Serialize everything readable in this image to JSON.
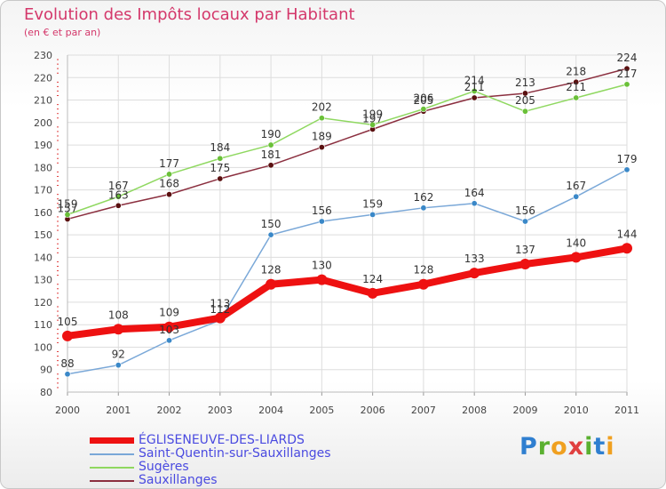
{
  "title": "Evolution des Impôts locaux par Habitant",
  "subtitle": "(en € et par an)",
  "brand": {
    "text": "Proxiti",
    "letters": [
      {
        "ch": "P",
        "color": "#2f7fd0"
      },
      {
        "ch": "r",
        "color": "#5ab030"
      },
      {
        "ch": "o",
        "color": "#f0a020"
      },
      {
        "ch": "x",
        "color": "#e04040"
      },
      {
        "ch": "i",
        "color": "#5ab030"
      },
      {
        "ch": "t",
        "color": "#2f7fd0"
      },
      {
        "ch": "i",
        "color": "#f0a020"
      }
    ]
  },
  "chart_data": {
    "type": "line",
    "title": "Evolution des Impôts locaux par Habitant",
    "subtitle": "(en € et par an)",
    "x": [
      "2000",
      "2001",
      "2002",
      "2003",
      "2004",
      "2005",
      "2006",
      "2007",
      "2008",
      "2009",
      "2010",
      "2011"
    ],
    "ylim": [
      80,
      230
    ],
    "yticks": [
      80,
      90,
      100,
      110,
      120,
      130,
      140,
      150,
      160,
      170,
      180,
      190,
      200,
      210,
      220,
      230
    ],
    "grid": true,
    "legend_position": "bottom-left",
    "series": [
      {
        "name": "Sauxillanges",
        "color": "#8b2f3f",
        "marker": "#5a1010",
        "values": [
          157,
          163,
          168,
          175,
          181,
          189,
          197,
          205,
          211,
          213,
          218,
          224
        ],
        "labels": [
          "157",
          "163",
          "168",
          "175",
          "181",
          "189",
          "197",
          "205",
          "211",
          "213",
          "218",
          "224"
        ]
      },
      {
        "name": "Sugères",
        "color": "#8fd860",
        "marker": "#6ac038",
        "values": [
          159,
          167,
          177,
          184,
          190,
          202,
          199,
          206,
          214,
          205,
          211,
          217
        ],
        "labels": [
          "159",
          "167",
          "177",
          "184",
          "190",
          "202",
          "199",
          "206",
          "214",
          "205",
          "211",
          "217"
        ]
      },
      {
        "name": "Saint-Quentin-sur-Sauxillanges",
        "color": "#7aa8d8",
        "marker": "#3a88c8",
        "values": [
          88,
          92,
          103,
          112,
          150,
          156,
          159,
          162,
          164,
          156,
          167,
          179
        ],
        "labels": [
          "88",
          "92",
          "103",
          "112",
          "150",
          "156",
          "159",
          "162",
          "164",
          "156",
          "167",
          "179"
        ]
      },
      {
        "name": "ÉGLISENEUVE-DES-LIARDS",
        "color": "#ee1111",
        "marker": "#ee1111",
        "values": [
          105,
          108,
          109,
          113,
          128,
          130,
          124,
          128,
          133,
          137,
          140,
          144
        ],
        "labels": [
          "105",
          "108",
          "109",
          "113",
          "128",
          "130",
          "124",
          "128",
          "133",
          "137",
          "140",
          "144"
        ]
      }
    ],
    "legend": [
      {
        "name": "ÉGLISENEUVE-DES-LIARDS",
        "color": "#ee1111",
        "weight": "heavy"
      },
      {
        "name": "Saint-Quentin-sur-Sauxillanges",
        "color": "#7aa8d8",
        "weight": "thin"
      },
      {
        "name": "Sugères",
        "color": "#8fd860",
        "weight": "thin"
      },
      {
        "name": "Sauxillanges",
        "color": "#8b2f3f",
        "weight": "thin"
      }
    ]
  }
}
